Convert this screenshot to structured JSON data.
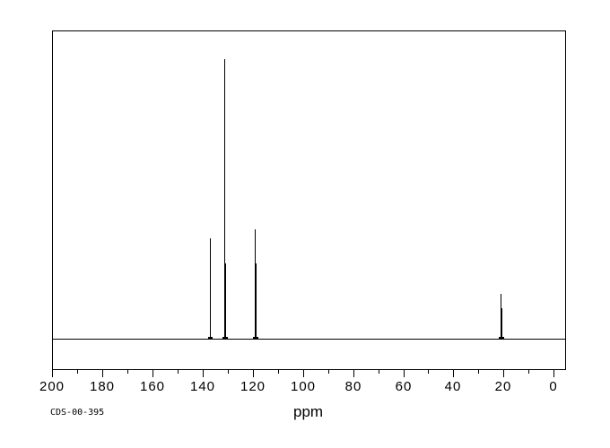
{
  "window": {
    "background_color": "#ffffff",
    "foreground_color": "#000000"
  },
  "footer": {
    "id_label": "CDS-00-395"
  },
  "chart_data": {
    "type": "line",
    "subtype": "nmr_spectrum",
    "title": "",
    "xlabel": "ppm",
    "ylabel": "",
    "grid": false,
    "legend": null,
    "x_axis": {
      "max": 200,
      "min": -4.9,
      "reversed": true,
      "major_ticks": [
        200,
        180,
        160,
        140,
        120,
        100,
        80,
        60,
        40,
        20,
        0
      ],
      "minor_tick_interval": 10
    },
    "y_axis": {
      "visible": false
    },
    "baseline_intensity": 0,
    "peaks": [
      {
        "ppm": 137.0,
        "rel_intensity": 0.36
      },
      {
        "ppm": 131.2,
        "rel_intensity": 1.0
      },
      {
        "ppm": 130.9,
        "rel_intensity": 0.27
      },
      {
        "ppm": 119.3,
        "rel_intensity": 0.39
      },
      {
        "ppm": 118.9,
        "rel_intensity": 0.27
      },
      {
        "ppm": 21.1,
        "rel_intensity": 0.16
      },
      {
        "ppm": 20.8,
        "rel_intensity": 0.11
      }
    ]
  }
}
